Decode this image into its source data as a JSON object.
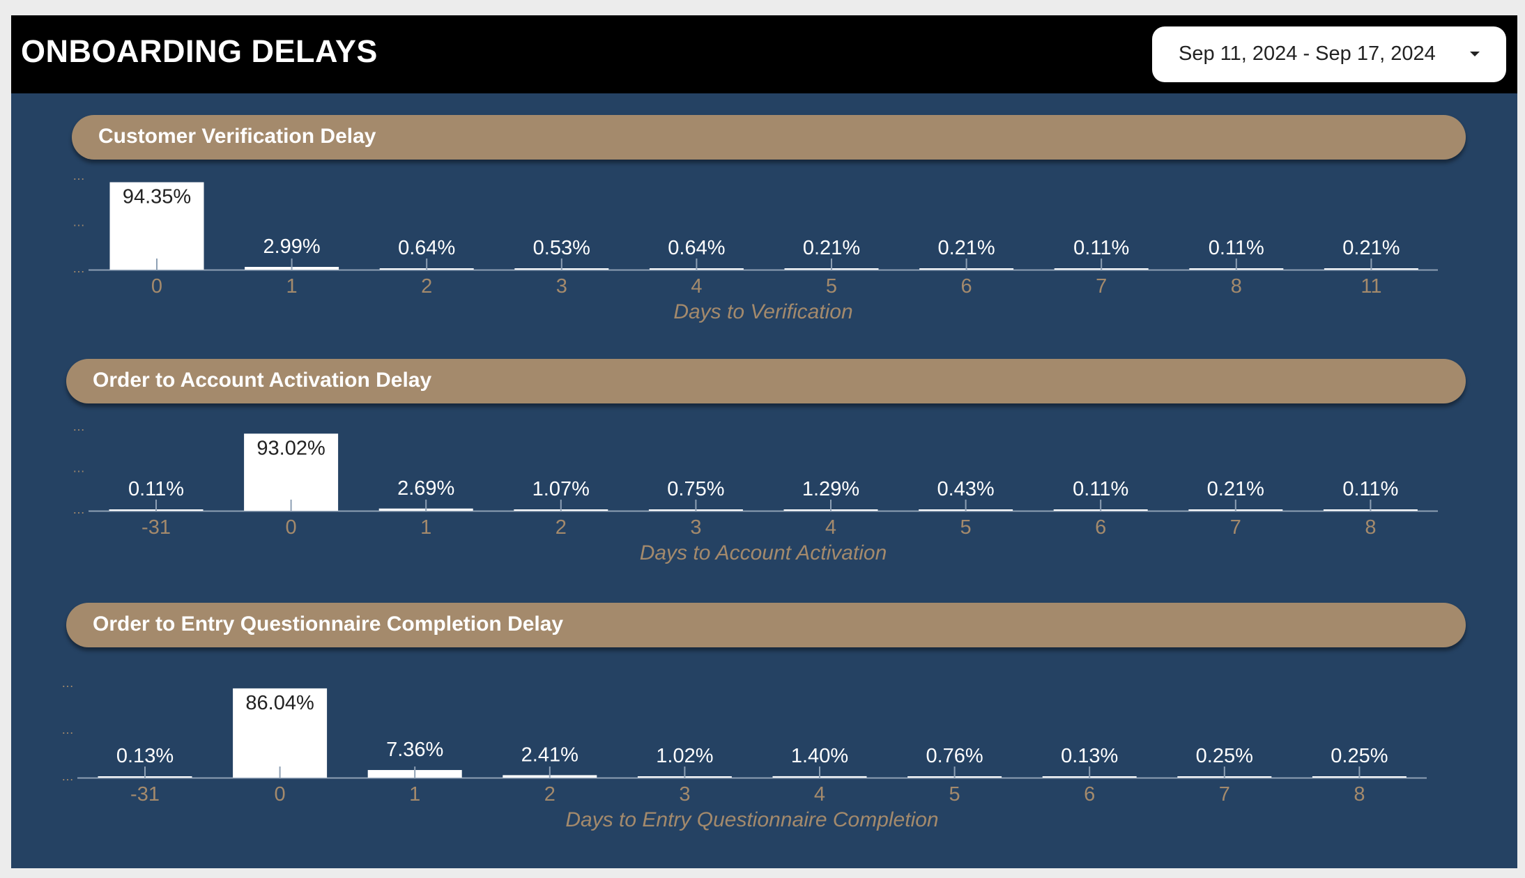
{
  "header": {
    "title": "ONBOARDING DELAYS",
    "date_range": "Sep 11, 2024 - Sep 17, 2024",
    "date_picker_icon": "caret-down-icon"
  },
  "colors": {
    "background": "#254263",
    "header_bar": "#000000",
    "section_header": "#a48a6c",
    "bar": "#ffffff",
    "axis_text": "#a48a6c"
  },
  "sections": [
    {
      "title": "Customer Verification Delay"
    },
    {
      "title": "Order to Account Activation Delay"
    },
    {
      "title": "Order to Entry Questionnaire Completion Delay"
    }
  ],
  "chart_data": [
    {
      "type": "bar",
      "xlabel": "Days to Verification",
      "ylabel": "",
      "categories": [
        "0",
        "1",
        "2",
        "3",
        "4",
        "5",
        "6",
        "7",
        "8",
        "11"
      ],
      "values": [
        94.35,
        2.99,
        0.64,
        0.53,
        0.64,
        0.21,
        0.21,
        0.11,
        0.11,
        0.21
      ],
      "labels": [
        "94.35%",
        "2.99%",
        "0.64%",
        "0.53%",
        "0.64%",
        "0.21%",
        "0.21%",
        "0.11%",
        "0.11%",
        "0.21%"
      ],
      "ylim": [
        0,
        100
      ],
      "grid": false,
      "y_tick_labels": [
        "…",
        "…",
        "…"
      ]
    },
    {
      "type": "bar",
      "xlabel": "Days to Account Activation",
      "ylabel": "",
      "categories": [
        "-31",
        "0",
        "1",
        "2",
        "3",
        "4",
        "5",
        "6",
        "7",
        "8"
      ],
      "values": [
        0.11,
        93.02,
        2.69,
        1.07,
        0.75,
        1.29,
        0.43,
        0.11,
        0.21,
        0.11
      ],
      "labels": [
        "0.11%",
        "93.02%",
        "2.69%",
        "1.07%",
        "0.75%",
        "1.29%",
        "0.43%",
        "0.11%",
        "0.21%",
        "0.11%"
      ],
      "ylim": [
        0,
        100
      ],
      "grid": false,
      "y_tick_labels": [
        "…",
        "…",
        "…"
      ]
    },
    {
      "type": "bar",
      "xlabel": "Days to Entry Questionnaire Completion",
      "ylabel": "",
      "categories": [
        "-31",
        "0",
        "1",
        "2",
        "3",
        "4",
        "5",
        "6",
        "7",
        "8"
      ],
      "values": [
        0.13,
        86.04,
        7.36,
        2.41,
        1.02,
        1.4,
        0.76,
        0.13,
        0.25,
        0.25
      ],
      "labels": [
        "0.13%",
        "86.04%",
        "7.36%",
        "2.41%",
        "1.02%",
        "1.40%",
        "0.76%",
        "0.13%",
        "0.25%",
        "0.25%"
      ],
      "ylim": [
        0,
        90
      ],
      "grid": false,
      "y_tick_labels": [
        "…",
        "…",
        "…"
      ]
    }
  ]
}
